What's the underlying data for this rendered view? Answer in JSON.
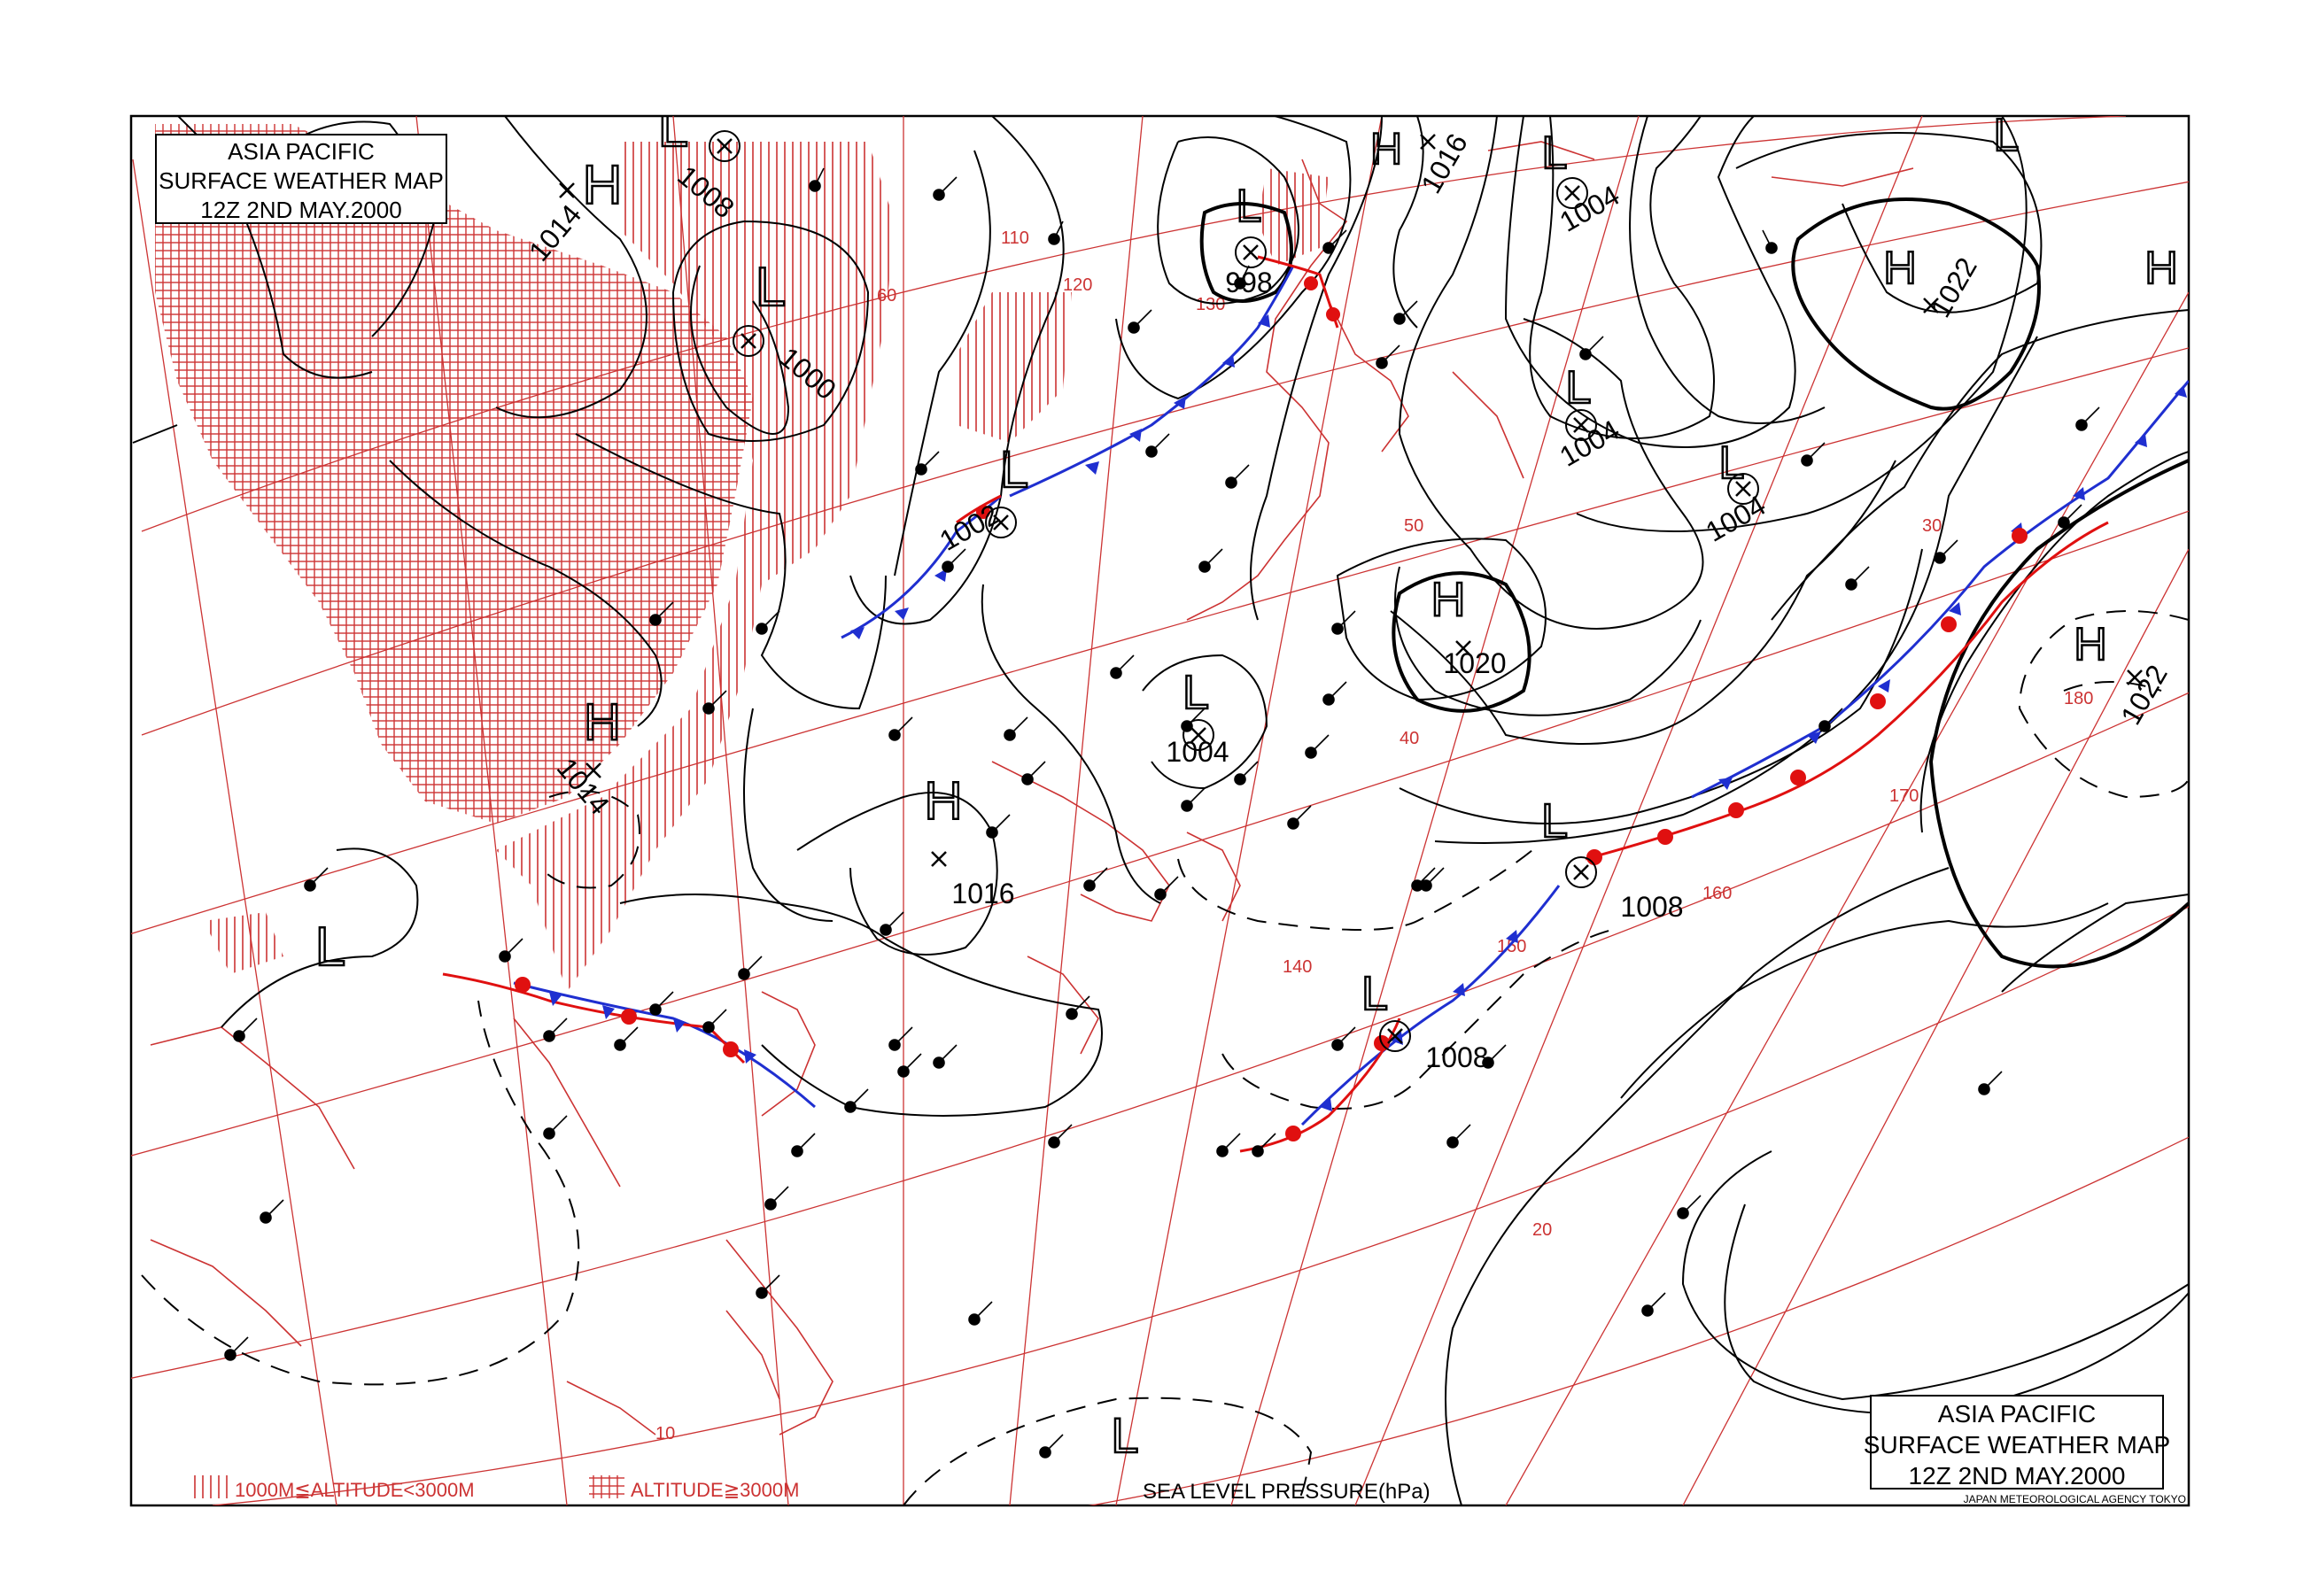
{
  "title_box_top": {
    "line1": "ASIA PACIFIC",
    "line2": "SURFACE WEATHER MAP",
    "line3": "12Z  2ND MAY.2000"
  },
  "title_box_bottom": {
    "line1": "ASIA PACIFIC",
    "line2": "SURFACE WEATHER MAP",
    "line3": "12Z  2ND MAY.2000"
  },
  "agency": "JAPAN METEOROLOGICAL AGENCY TOKYO",
  "legend": {
    "mid_altitude": "1000M≦ALTITUDE<3000M",
    "high_altitude": "ALTITUDE≧3000M",
    "pressure_units": "SEA LEVEL PRESSURE(hPa)"
  },
  "pressure_centers": [
    {
      "type": "L",
      "value": "1008"
    },
    {
      "type": "H",
      "value": "1014"
    },
    {
      "type": "L",
      "value": "1000"
    },
    {
      "type": "L",
      "value": "998"
    },
    {
      "type": "H",
      "value": "1016"
    },
    {
      "type": "L",
      "value": "1004"
    },
    {
      "type": "H",
      "value": "1022"
    },
    {
      "type": "L",
      "value": "1004"
    },
    {
      "type": "L",
      "value": "1004"
    },
    {
      "type": "L",
      "value": "1002"
    },
    {
      "type": "H",
      "value": "1020"
    },
    {
      "type": "L",
      "value": "1004"
    },
    {
      "type": "H",
      "value": "1014"
    },
    {
      "type": "H",
      "value": "1016"
    },
    {
      "type": "L",
      "value": "1008"
    },
    {
      "type": "L",
      "value": "1008"
    },
    {
      "type": "H",
      "value": "1022"
    },
    {
      "type": "L",
      "value": ""
    },
    {
      "type": "L",
      "value": ""
    },
    {
      "type": "L",
      "value": ""
    },
    {
      "type": "H",
      "value": ""
    }
  ],
  "graticule_labels": {
    "longitudes": [
      "110",
      "120",
      "130",
      "140",
      "150",
      "160",
      "170",
      "180"
    ],
    "latitudes": [
      "60",
      "50",
      "40",
      "30",
      "20",
      "10"
    ]
  },
  "colors": {
    "grid": "#cc3333",
    "isobar": "#000000",
    "cold_front": "#1f2fd0",
    "warm_front": "#e01010",
    "hatch": "#cc3333"
  }
}
